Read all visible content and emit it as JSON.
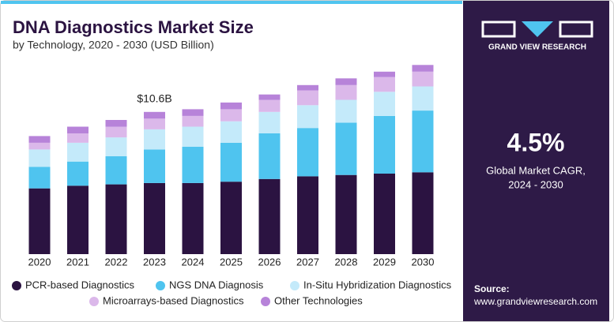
{
  "chart_data": {
    "type": "stacked_bar",
    "title": "DNA Diagnostics Market Size",
    "subtitle": "by Technology, 2020 - 2030 (USD Billion)",
    "categories": [
      "2020",
      "2021",
      "2022",
      "2023",
      "2024",
      "2025",
      "2026",
      "2027",
      "2028",
      "2029",
      "2030"
    ],
    "series": [
      {
        "name": "PCR-based Diagnostics",
        "color": "#2b1341",
        "values": [
          4.9,
          5.1,
          5.2,
          5.3,
          5.3,
          5.4,
          5.6,
          5.8,
          5.9,
          6.0,
          6.1
        ]
      },
      {
        "name": "NGS DNA Diagnosis",
        "color": "#4fc4ef",
        "values": [
          1.6,
          1.8,
          2.1,
          2.5,
          2.7,
          2.9,
          3.4,
          3.6,
          3.9,
          4.3,
          4.6
        ]
      },
      {
        "name": "In-Situ Hybridization Diagnostics",
        "color": "#c4eafa",
        "values": [
          1.3,
          1.4,
          1.4,
          1.5,
          1.5,
          1.6,
          1.6,
          1.7,
          1.7,
          1.8,
          1.8
        ]
      },
      {
        "name": "Microarrays-based Diagnostics",
        "color": "#dbb8ea",
        "values": [
          0.5,
          0.7,
          0.8,
          0.8,
          0.8,
          0.9,
          0.9,
          1.1,
          1.1,
          1.1,
          1.1
        ]
      },
      {
        "name": "Other Technologies",
        "color": "#b783d9",
        "values": [
          0.5,
          0.5,
          0.5,
          0.5,
          0.5,
          0.5,
          0.4,
          0.4,
          0.5,
          0.4,
          0.5
        ]
      }
    ],
    "ylim": [
      0,
      16
    ],
    "annotation": {
      "label": "$10.6B",
      "value": 10.6,
      "category": "2023"
    }
  },
  "panel": {
    "brand": "GRAND VIEW RESEARCH",
    "cagr": "4.5%",
    "cagr_label": [
      "Global Market CAGR,",
      "2024 - 2030"
    ],
    "source_label": "Source:",
    "source_url": "www.grandviewresearch.com"
  }
}
